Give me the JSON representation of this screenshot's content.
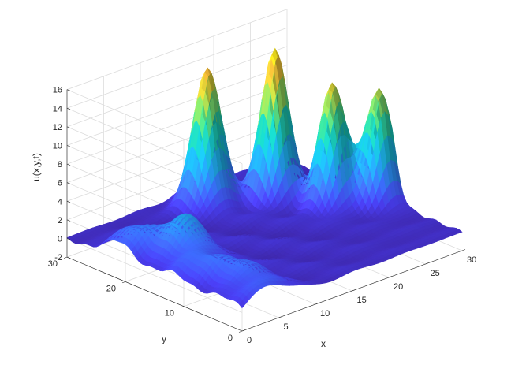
{
  "chart_data": {
    "type": "surface",
    "title": "",
    "xlabel": "x",
    "ylabel": "y",
    "zlabel": "u(x,y,t)",
    "xlim": [
      0,
      30
    ],
    "ylim": [
      0,
      30
    ],
    "zlim": [
      -2,
      16
    ],
    "x_ticks": [
      "0",
      "5",
      "10",
      "15",
      "20",
      "25",
      "30"
    ],
    "y_ticks": [
      "0",
      "10",
      "20",
      "30"
    ],
    "z_ticks": [
      "-2",
      "0",
      "2",
      "4",
      "6",
      "8",
      "10",
      "12",
      "14",
      "16"
    ],
    "grid": true,
    "colormap": "parula",
    "peaks": [
      {
        "x": 16.0,
        "y": 26.0,
        "height": 15.0,
        "width": 1.6
      },
      {
        "x": 22.0,
        "y": 22.0,
        "height": 15.9,
        "width": 1.5
      },
      {
        "x": 25.0,
        "y": 16.0,
        "height": 12.9,
        "width": 1.5
      },
      {
        "x": 29.0,
        "y": 13.0,
        "height": 12.2,
        "width": 1.5
      },
      {
        "x": 2.0,
        "y": 21.0,
        "height": 3.0,
        "width": 2.4
      },
      {
        "x": 5.0,
        "y": 16.0,
        "height": 4.2,
        "width": 2.2
      },
      {
        "x": 3.0,
        "y": 11.0,
        "height": 2.2,
        "width": 2.4
      },
      {
        "x": 4.0,
        "y": 6.0,
        "height": 2.2,
        "width": 2.4
      },
      {
        "x": 4.0,
        "y": 1.0,
        "height": 2.0,
        "width": 2.4
      }
    ]
  }
}
